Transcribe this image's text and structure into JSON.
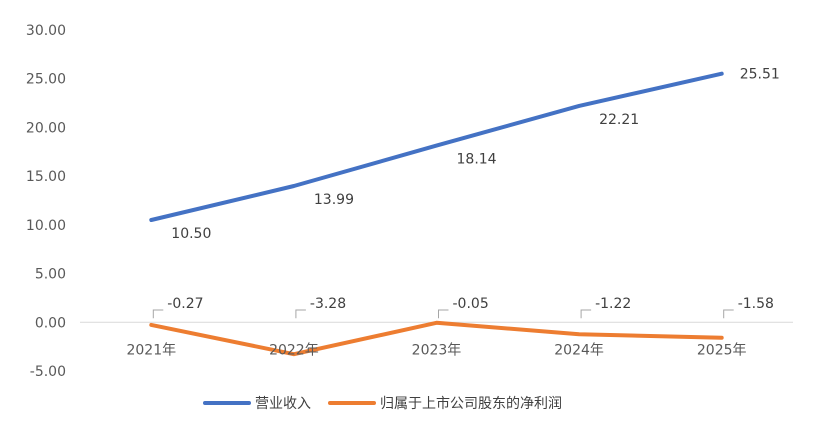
{
  "chart_data": {
    "type": "line",
    "categories": [
      "2021年",
      "2022年",
      "2023年",
      "2024年",
      "2025年"
    ],
    "ylim": [
      -5,
      30
    ],
    "ytick_labels": [
      "-5.00",
      "0.00",
      "5.00",
      "10.00",
      "15.00",
      "20.00",
      "25.00",
      "30.00"
    ],
    "grid": false,
    "legend_position": "bottom",
    "series": [
      {
        "name": "营业收入",
        "color": "#4472C4",
        "values": [
          10.5,
          13.99,
          18.14,
          22.21,
          25.51
        ],
        "labels": [
          "10.50",
          "13.99",
          "18.14",
          "22.21",
          "25.51"
        ]
      },
      {
        "name": "归属于上市公司股东的净利润",
        "color": "#ED7D31",
        "values": [
          -0.27,
          -3.28,
          -0.05,
          -1.22,
          -1.58
        ],
        "labels": [
          "-0.27",
          "-3.28",
          "-0.05",
          "-1.22",
          "-1.58"
        ]
      }
    ],
    "leader_color": "#A6A6A6",
    "axis_color": "#D9D9D9"
  }
}
